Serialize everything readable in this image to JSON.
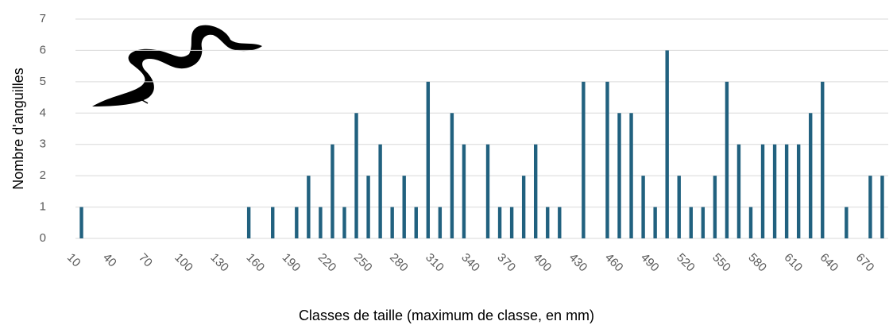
{
  "chart_data": {
    "type": "bar",
    "x_label": "Classes de taille (maximum de classe, en mm)",
    "y_label": "Nombre d'anguilles",
    "categories": [
      "10",
      null,
      null,
      "40",
      null,
      null,
      "70",
      null,
      null,
      "100",
      null,
      null,
      "130",
      null,
      null,
      "160",
      null,
      null,
      "190",
      null,
      null,
      "220",
      null,
      null,
      "250",
      null,
      null,
      "280",
      null,
      null,
      "310",
      null,
      null,
      "340",
      null,
      null,
      "370",
      null,
      null,
      "400",
      null,
      null,
      "430",
      null,
      null,
      "460",
      null,
      null,
      "490",
      null,
      null,
      "520",
      null,
      null,
      "550",
      null,
      null,
      "580",
      null,
      null,
      "610",
      null,
      null,
      "640",
      null,
      null,
      "670",
      null
    ],
    "values": [
      1,
      0,
      0,
      0,
      0,
      0,
      0,
      0,
      0,
      0,
      0,
      0,
      0,
      0,
      1,
      0,
      1,
      0,
      1,
      2,
      1,
      3,
      1,
      4,
      2,
      3,
      1,
      2,
      1,
      5,
      1,
      4,
      3,
      0,
      3,
      1,
      1,
      2,
      3,
      1,
      1,
      0,
      5,
      0,
      5,
      4,
      4,
      2,
      1,
      6,
      2,
      1,
      1,
      2,
      5,
      3,
      1,
      3,
      3,
      3,
      3,
      4,
      5,
      0,
      1,
      0,
      2,
      2
    ],
    "color": "#21617f",
    "ylim": [
      0,
      7
    ],
    "yticks": [
      0,
      1,
      2,
      3,
      4,
      5,
      6,
      7
    ],
    "grid": true
  }
}
